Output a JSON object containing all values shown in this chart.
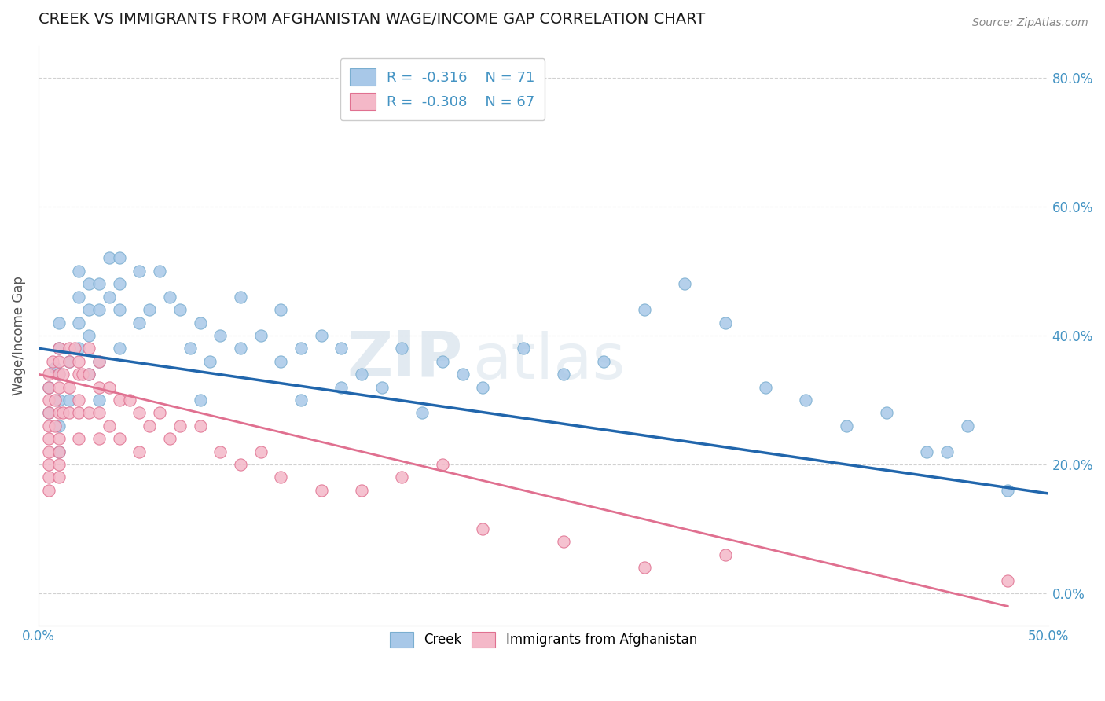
{
  "title": "CREEK VS IMMIGRANTS FROM AFGHANISTAN WAGE/INCOME GAP CORRELATION CHART",
  "source": "Source: ZipAtlas.com",
  "ylabel": "Wage/Income Gap",
  "xlim": [
    0.0,
    0.5
  ],
  "ylim": [
    -0.05,
    0.85
  ],
  "x_ticks": [
    0.0,
    0.1,
    0.2,
    0.3,
    0.4,
    0.5
  ],
  "x_tick_labels": [
    "0.0%",
    "",
    "",
    "",
    "",
    "50.0%"
  ],
  "y_ticks": [
    0.0,
    0.2,
    0.4,
    0.6,
    0.8
  ],
  "y_tick_labels_right": [
    "0.0%",
    "20.0%",
    "40.0%",
    "60.0%",
    "80.0%"
  ],
  "grid_color": "#cccccc",
  "background_color": "#ffffff",
  "watermark_zip": "ZIP",
  "watermark_atlas": "atlas",
  "legend_r1": "R =  -0.316",
  "legend_n1": "N = 71",
  "legend_r2": "R =  -0.308",
  "legend_n2": "N = 67",
  "creek_color": "#a8c8e8",
  "creek_edge_color": "#7aaed0",
  "creek_line_color": "#2166ac",
  "afghan_color": "#f4b8c8",
  "afghan_edge_color": "#e07090",
  "afghan_line_color": "#e07090",
  "title_color": "#1a1a1a",
  "axis_label_color": "#555555",
  "tick_label_color": "#4393c3",
  "creek_scatter_x": [
    0.005,
    0.005,
    0.008,
    0.01,
    0.01,
    0.01,
    0.01,
    0.01,
    0.01,
    0.015,
    0.015,
    0.02,
    0.02,
    0.02,
    0.02,
    0.025,
    0.025,
    0.025,
    0.025,
    0.03,
    0.03,
    0.03,
    0.03,
    0.035,
    0.035,
    0.04,
    0.04,
    0.04,
    0.04,
    0.05,
    0.05,
    0.055,
    0.06,
    0.065,
    0.07,
    0.075,
    0.08,
    0.08,
    0.085,
    0.09,
    0.1,
    0.1,
    0.11,
    0.12,
    0.12,
    0.13,
    0.13,
    0.14,
    0.15,
    0.15,
    0.16,
    0.17,
    0.18,
    0.19,
    0.2,
    0.21,
    0.22,
    0.24,
    0.26,
    0.28,
    0.3,
    0.32,
    0.34,
    0.36,
    0.38,
    0.4,
    0.42,
    0.44,
    0.45,
    0.46,
    0.48
  ],
  "creek_scatter_y": [
    0.32,
    0.28,
    0.35,
    0.42,
    0.38,
    0.34,
    0.3,
    0.26,
    0.22,
    0.36,
    0.3,
    0.5,
    0.46,
    0.42,
    0.38,
    0.48,
    0.44,
    0.4,
    0.34,
    0.48,
    0.44,
    0.36,
    0.3,
    0.52,
    0.46,
    0.52,
    0.48,
    0.44,
    0.38,
    0.5,
    0.42,
    0.44,
    0.5,
    0.46,
    0.44,
    0.38,
    0.42,
    0.3,
    0.36,
    0.4,
    0.46,
    0.38,
    0.4,
    0.44,
    0.36,
    0.38,
    0.3,
    0.4,
    0.38,
    0.32,
    0.34,
    0.32,
    0.38,
    0.28,
    0.36,
    0.34,
    0.32,
    0.38,
    0.34,
    0.36,
    0.44,
    0.48,
    0.42,
    0.32,
    0.3,
    0.26,
    0.28,
    0.22,
    0.22,
    0.26,
    0.16
  ],
  "afghan_scatter_x": [
    0.005,
    0.005,
    0.005,
    0.005,
    0.005,
    0.005,
    0.005,
    0.005,
    0.005,
    0.005,
    0.007,
    0.008,
    0.008,
    0.01,
    0.01,
    0.01,
    0.01,
    0.01,
    0.01,
    0.01,
    0.01,
    0.01,
    0.012,
    0.012,
    0.015,
    0.015,
    0.015,
    0.015,
    0.018,
    0.02,
    0.02,
    0.02,
    0.02,
    0.02,
    0.022,
    0.025,
    0.025,
    0.025,
    0.03,
    0.03,
    0.03,
    0.03,
    0.035,
    0.035,
    0.04,
    0.04,
    0.045,
    0.05,
    0.05,
    0.055,
    0.06,
    0.065,
    0.07,
    0.08,
    0.09,
    0.1,
    0.11,
    0.12,
    0.14,
    0.16,
    0.18,
    0.2,
    0.22,
    0.26,
    0.3,
    0.34,
    0.48
  ],
  "afghan_scatter_y": [
    0.34,
    0.32,
    0.3,
    0.28,
    0.26,
    0.24,
    0.22,
    0.2,
    0.18,
    0.16,
    0.36,
    0.3,
    0.26,
    0.38,
    0.36,
    0.34,
    0.32,
    0.28,
    0.24,
    0.22,
    0.2,
    0.18,
    0.34,
    0.28,
    0.38,
    0.36,
    0.32,
    0.28,
    0.38,
    0.36,
    0.34,
    0.3,
    0.28,
    0.24,
    0.34,
    0.38,
    0.34,
    0.28,
    0.36,
    0.32,
    0.28,
    0.24,
    0.32,
    0.26,
    0.3,
    0.24,
    0.3,
    0.28,
    0.22,
    0.26,
    0.28,
    0.24,
    0.26,
    0.26,
    0.22,
    0.2,
    0.22,
    0.18,
    0.16,
    0.16,
    0.18,
    0.2,
    0.1,
    0.08,
    0.04,
    0.06,
    0.02
  ],
  "creek_trend_x": [
    0.0,
    0.5
  ],
  "creek_trend_y": [
    0.38,
    0.155
  ],
  "afghan_trend_x": [
    0.0,
    0.48
  ],
  "afghan_trend_y": [
    0.34,
    -0.02
  ]
}
